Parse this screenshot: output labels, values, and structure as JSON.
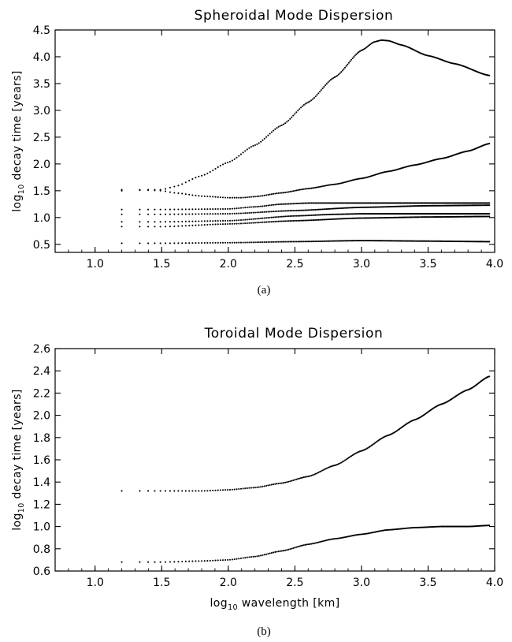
{
  "chart_data": [
    {
      "type": "scatter",
      "title": "Spheroidal Mode Dispersion",
      "xlabel": "",
      "ylabel_pre": "log",
      "ylabel_sub": "10",
      "ylabel_post": " decay time [years]",
      "panel_label": "(a)",
      "xlim": [
        0.7,
        4.0
      ],
      "ylim": [
        0.35,
        4.5
      ],
      "xticks": [
        "1.0",
        "1.5",
        "2.0",
        "2.5",
        "3.0",
        "3.5",
        "4.0"
      ],
      "yticks": [
        "0.5",
        "1.0",
        "1.5",
        "2.0",
        "2.5",
        "3.0",
        "3.5",
        "4.0",
        "4.5"
      ],
      "x_range": [
        1.2,
        3.96
      ],
      "grid": false,
      "series": [
        {
          "x": [
            1.2,
            1.3,
            1.4,
            1.5,
            1.6,
            1.8,
            2.0,
            2.2,
            2.4,
            2.6,
            2.8,
            3.0,
            3.1,
            3.15,
            3.2,
            3.3,
            3.5,
            3.7,
            3.96
          ],
          "y": [
            1.52,
            1.52,
            1.52,
            1.52,
            1.58,
            1.78,
            2.03,
            2.35,
            2.72,
            3.15,
            3.62,
            4.12,
            4.28,
            4.31,
            4.3,
            4.22,
            4.02,
            3.87,
            3.65
          ]
        },
        {
          "x": [
            1.2,
            1.3,
            1.4,
            1.5,
            1.6,
            1.8,
            2.0,
            2.1,
            2.2,
            2.4,
            2.6,
            2.8,
            3.0,
            3.2,
            3.4,
            3.6,
            3.8,
            3.96
          ],
          "y": [
            1.5,
            1.51,
            1.51,
            1.5,
            1.46,
            1.4,
            1.37,
            1.37,
            1.39,
            1.46,
            1.54,
            1.62,
            1.73,
            1.86,
            1.98,
            2.1,
            2.24,
            2.38
          ]
        },
        {
          "x": [
            1.2,
            1.5,
            2.0,
            2.2,
            2.4,
            2.6,
            2.8,
            3.0,
            3.5,
            3.96
          ],
          "y": [
            1.15,
            1.15,
            1.16,
            1.2,
            1.25,
            1.27,
            1.27,
            1.27,
            1.27,
            1.27
          ]
        },
        {
          "x": [
            1.2,
            1.5,
            2.0,
            2.5,
            3.0,
            3.5,
            3.96
          ],
          "y": [
            1.06,
            1.06,
            1.07,
            1.13,
            1.19,
            1.22,
            1.23
          ]
        },
        {
          "x": [
            1.2,
            1.5,
            2.0,
            2.5,
            2.8,
            3.0,
            3.5,
            3.96
          ],
          "y": [
            0.92,
            0.92,
            0.94,
            1.03,
            1.06,
            1.07,
            1.07,
            1.07
          ]
        },
        {
          "x": [
            1.2,
            1.5,
            2.0,
            2.5,
            3.0,
            3.5,
            3.96
          ],
          "y": [
            0.83,
            0.83,
            0.88,
            0.94,
            0.99,
            1.01,
            1.02
          ]
        },
        {
          "x": [
            1.2,
            1.5,
            2.0,
            2.5,
            3.0,
            3.5,
            3.96
          ],
          "y": [
            0.52,
            0.52,
            0.53,
            0.55,
            0.57,
            0.56,
            0.55
          ]
        }
      ]
    },
    {
      "type": "scatter",
      "title": "Toroidal Mode Dispersion",
      "xlabel_pre": "log",
      "xlabel_sub": "10",
      "xlabel_post": " wavelength [km]",
      "ylabel_pre": "log",
      "ylabel_sub": "10",
      "ylabel_post": " decay time [years]",
      "panel_label": "(b)",
      "xlim": [
        0.7,
        4.0
      ],
      "ylim": [
        0.6,
        2.6
      ],
      "xticks": [
        "1.0",
        "1.5",
        "2.0",
        "2.5",
        "3.0",
        "3.5",
        "4.0"
      ],
      "yticks": [
        "0.6",
        "0.8",
        "1.0",
        "1.2",
        "1.4",
        "1.6",
        "1.8",
        "2.0",
        "2.2",
        "2.4",
        "2.6"
      ],
      "x_range": [
        1.2,
        3.96
      ],
      "grid": false,
      "series": [
        {
          "x": [
            1.2,
            1.5,
            1.8,
            2.0,
            2.2,
            2.4,
            2.6,
            2.8,
            3.0,
            3.2,
            3.4,
            3.6,
            3.8,
            3.96
          ],
          "y": [
            1.32,
            1.32,
            1.32,
            1.33,
            1.35,
            1.39,
            1.45,
            1.55,
            1.68,
            1.82,
            1.96,
            2.1,
            2.23,
            2.35
          ]
        },
        {
          "x": [
            1.2,
            1.5,
            1.8,
            2.0,
            2.2,
            2.4,
            2.6,
            2.8,
            3.0,
            3.2,
            3.4,
            3.6,
            3.8,
            3.96
          ],
          "y": [
            0.68,
            0.68,
            0.69,
            0.7,
            0.73,
            0.78,
            0.84,
            0.89,
            0.93,
            0.97,
            0.99,
            1.0,
            1.0,
            1.01
          ]
        }
      ]
    }
  ]
}
